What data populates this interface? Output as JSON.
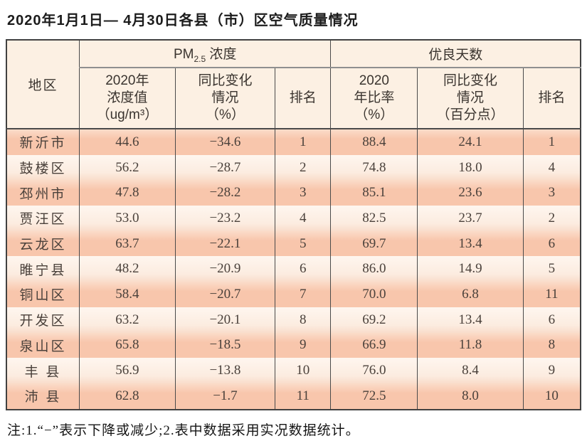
{
  "title": "2020年1月1日— 4月30日各县（市）区空气质量情况",
  "note": "注:1.“−”表示下降或减少;2.表中数据采用实况数据统计。",
  "colors": {
    "row_salmon": "#f8c6ac",
    "row_cream": "#fcece0",
    "header_bg": "#fcf0e3",
    "border_dark": "#4a4a4a",
    "group_divider_gray": "#8f8f8f"
  },
  "table": {
    "header": {
      "region": "地区",
      "pm_group": {
        "prefix": "PM",
        "sub": "2.5",
        "suffix": " 浓度"
      },
      "days_group": "优良天数",
      "pm_value": "2020年\n浓度值\n（ug/m³）",
      "pm_change": "同比变化\n情况\n（%）",
      "pm_rank": "排名",
      "days_rate": "2020\n年比率\n（%）",
      "days_change": "同比变化\n情况\n（百分点）",
      "days_rank": "排名"
    },
    "rows": [
      {
        "region": "新沂市",
        "pm_value": "44.6",
        "pm_change": "−34.6",
        "pm_rank": "1",
        "days_rate": "88.4",
        "days_change": "24.1",
        "days_rank": "1"
      },
      {
        "region": "鼓楼区",
        "pm_value": "56.2",
        "pm_change": "−28.7",
        "pm_rank": "2",
        "days_rate": "74.8",
        "days_change": "18.0",
        "days_rank": "4"
      },
      {
        "region": "邳州市",
        "pm_value": "47.8",
        "pm_change": "−28.2",
        "pm_rank": "3",
        "days_rate": "85.1",
        "days_change": "23.6",
        "days_rank": "3"
      },
      {
        "region": "贾汪区",
        "pm_value": "53.0",
        "pm_change": "−23.2",
        "pm_rank": "4",
        "days_rate": "82.5",
        "days_change": "23.7",
        "days_rank": "2"
      },
      {
        "region": "云龙区",
        "pm_value": "63.7",
        "pm_change": "−22.1",
        "pm_rank": "5",
        "days_rate": "69.7",
        "days_change": "13.4",
        "days_rank": "6"
      },
      {
        "region": "睢宁县",
        "pm_value": "48.2",
        "pm_change": "−20.9",
        "pm_rank": "6",
        "days_rate": "86.0",
        "days_change": "14.9",
        "days_rank": "5"
      },
      {
        "region": "铜山区",
        "pm_value": "58.4",
        "pm_change": "−20.7",
        "pm_rank": "7",
        "days_rate": "70.0",
        "days_change": "6.8",
        "days_rank": "11"
      },
      {
        "region": "开发区",
        "pm_value": "63.2",
        "pm_change": "−20.1",
        "pm_rank": "8",
        "days_rate": "69.2",
        "days_change": "13.4",
        "days_rank": "6"
      },
      {
        "region": "泉山区",
        "pm_value": "65.8",
        "pm_change": "−18.5",
        "pm_rank": "9",
        "days_rate": "66.9",
        "days_change": "11.8",
        "days_rank": "8"
      },
      {
        "region": "丰 县",
        "pm_value": "56.9",
        "pm_change": "−13.8",
        "pm_rank": "10",
        "days_rate": "76.0",
        "days_change": "8.4",
        "days_rank": "9"
      },
      {
        "region": "沛 县",
        "pm_value": "62.8",
        "pm_change": "−1.7",
        "pm_rank": "11",
        "days_rate": "72.5",
        "days_change": "8.0",
        "days_rank": "10"
      }
    ]
  }
}
